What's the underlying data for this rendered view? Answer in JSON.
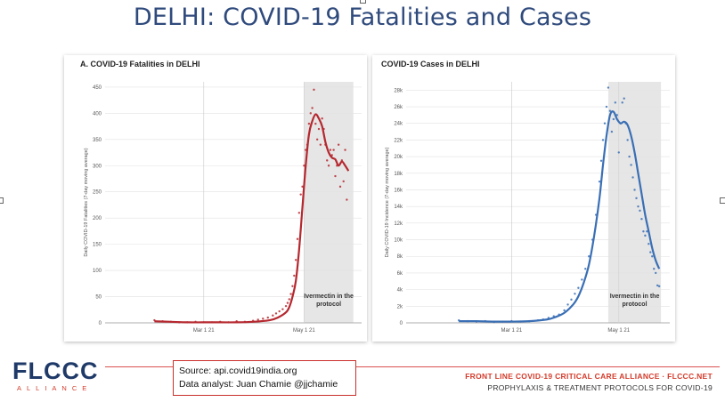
{
  "slide": {
    "title": "DELHI: COVID-19 Fatalities and Cases"
  },
  "chart_data": [
    {
      "type": "line",
      "title": "A. COVID-19 Fatalities in DELHI",
      "ylabel": "Daily COVID-19 Fatalities (7-day moving average)",
      "xlabel": "",
      "x_ticks": [
        "Mar 1 21",
        "May 1 21"
      ],
      "ylim": [
        0,
        460
      ],
      "y_ticks": [
        "0",
        "50",
        "100",
        "150",
        "200",
        "250",
        "300",
        "350",
        "400",
        "450"
      ],
      "shaded_region": {
        "from_day": 61,
        "to_day": 91,
        "label_line1": "Ivermectin in the",
        "label_line2": "protocol"
      },
      "line_color": "#b5282f",
      "series": [
        {
          "kind": "moving-average",
          "x": [
            -30,
            -20,
            -10,
            0,
            10,
            20,
            30,
            40,
            45,
            50,
            52,
            54,
            56,
            58,
            60,
            62,
            64,
            66,
            68,
            70,
            72,
            74,
            76,
            78,
            80,
            82,
            84,
            86,
            88
          ],
          "y": [
            3,
            2,
            1,
            1,
            1,
            1,
            2,
            5,
            10,
            20,
            30,
            50,
            80,
            140,
            220,
            300,
            360,
            385,
            398,
            390,
            375,
            345,
            325,
            315,
            312,
            300,
            308,
            300,
            290
          ]
        },
        {
          "kind": "daily-points",
          "x": [
            -30,
            -25,
            -20,
            -15,
            -10,
            -5,
            0,
            5,
            10,
            15,
            20,
            25,
            30,
            33,
            36,
            39,
            42,
            44,
            46,
            48,
            50,
            51,
            52,
            53,
            54,
            55,
            56,
            57,
            58,
            59,
            60,
            61,
            62,
            63,
            64,
            65,
            66,
            67,
            68,
            69,
            70,
            71,
            72,
            73,
            74,
            75,
            76,
            77,
            78,
            79,
            80,
            81,
            82,
            83,
            84,
            85,
            86,
            87
          ],
          "y": [
            5,
            3,
            2,
            1,
            1,
            2,
            1,
            1,
            2,
            1,
            3,
            2,
            4,
            6,
            8,
            10,
            14,
            18,
            22,
            26,
            32,
            38,
            45,
            55,
            70,
            90,
            120,
            160,
            210,
            245,
            260,
            300,
            330,
            340,
            380,
            400,
            410,
            445,
            380,
            350,
            370,
            340,
            390,
            370,
            340,
            310,
            300,
            330,
            320,
            330,
            280,
            300,
            340,
            260,
            310,
            270,
            330,
            235
          ]
        }
      ]
    },
    {
      "type": "line",
      "title": "COVID-19 Cases in DELHI",
      "ylabel": "Daily COVID-19 Incidence (7-day moving average)",
      "xlabel": "",
      "x_ticks": [
        "Mar 1 21",
        "May 1 21"
      ],
      "ylim": [
        0,
        29000
      ],
      "y_ticks": [
        "0",
        "2k",
        "4k",
        "6k",
        "8k",
        "10k",
        "12k",
        "14k",
        "16k",
        "18k",
        "20k",
        "22k",
        "24k",
        "26k",
        "28k"
      ],
      "shaded_region": {
        "from_day": 55,
        "to_day": 85,
        "label_line1": "Ivermectin in the",
        "label_line2": "protocol"
      },
      "line_color": "#3a6fb5",
      "series": [
        {
          "kind": "moving-average",
          "x": [
            -30,
            -20,
            -10,
            0,
            10,
            20,
            25,
            30,
            35,
            38,
            41,
            44,
            47,
            50,
            52,
            54,
            56,
            58,
            60,
            62,
            64,
            66,
            68,
            70,
            72,
            74,
            76,
            78,
            80,
            82,
            84
          ],
          "y": [
            200,
            200,
            150,
            150,
            200,
            400,
            700,
            1200,
            2200,
            3200,
            4800,
            7000,
            10500,
            15000,
            19000,
            22500,
            25000,
            25400,
            24500,
            24000,
            24200,
            23800,
            22500,
            20500,
            18000,
            15500,
            13000,
            11000,
            9000,
            7500,
            6500
          ]
        },
        {
          "kind": "daily-points",
          "x": [
            -30,
            -25,
            -20,
            -15,
            -10,
            -5,
            0,
            5,
            10,
            15,
            18,
            21,
            24,
            27,
            30,
            32,
            34,
            36,
            38,
            40,
            42,
            44,
            46,
            48,
            50,
            51,
            52,
            53,
            54,
            55,
            56,
            57,
            58,
            59,
            60,
            61,
            62,
            63,
            64,
            65,
            66,
            67,
            68,
            69,
            70,
            71,
            72,
            73,
            74,
            75,
            76,
            77,
            78,
            79,
            80,
            81,
            82,
            83,
            84
          ],
          "y": [
            300,
            200,
            150,
            200,
            100,
            150,
            200,
            150,
            200,
            300,
            400,
            600,
            800,
            1000,
            1500,
            2200,
            2800,
            3500,
            4200,
            5200,
            6500,
            8000,
            10000,
            13000,
            17000,
            19500,
            22000,
            24000,
            26000,
            28300,
            25500,
            23000,
            24500,
            26500,
            25000,
            20500,
            24000,
            26500,
            27000,
            24000,
            22000,
            20000,
            19000,
            17500,
            16000,
            15000,
            14000,
            13500,
            12500,
            11000,
            10500,
            11000,
            9500,
            8500,
            8000,
            6500,
            6000,
            4500,
            4400
          ]
        }
      ]
    }
  ],
  "footer": {
    "source_line": "Source: api.covid19india.org",
    "analyst_line": "Data analyst: Juan Chamie @jjchamie",
    "logo_text": "FLCCC",
    "logo_subtext": "ALLIANCE",
    "org_name": "FRONT LINE COVID-19 CRITICAL CARE ALLIANCE · FLCCC.NET",
    "org_tagline": "PROPHYLAXIS & TREATMENT PROTOCOLS FOR COVID-19"
  },
  "colors": {
    "title": "#2f4a7c",
    "fatalities": "#b5282f",
    "cases": "#3a6fb5",
    "shade": "#e6e6e6",
    "brand_red": "#d43a2a",
    "brand_navy": "#1f3a68"
  }
}
